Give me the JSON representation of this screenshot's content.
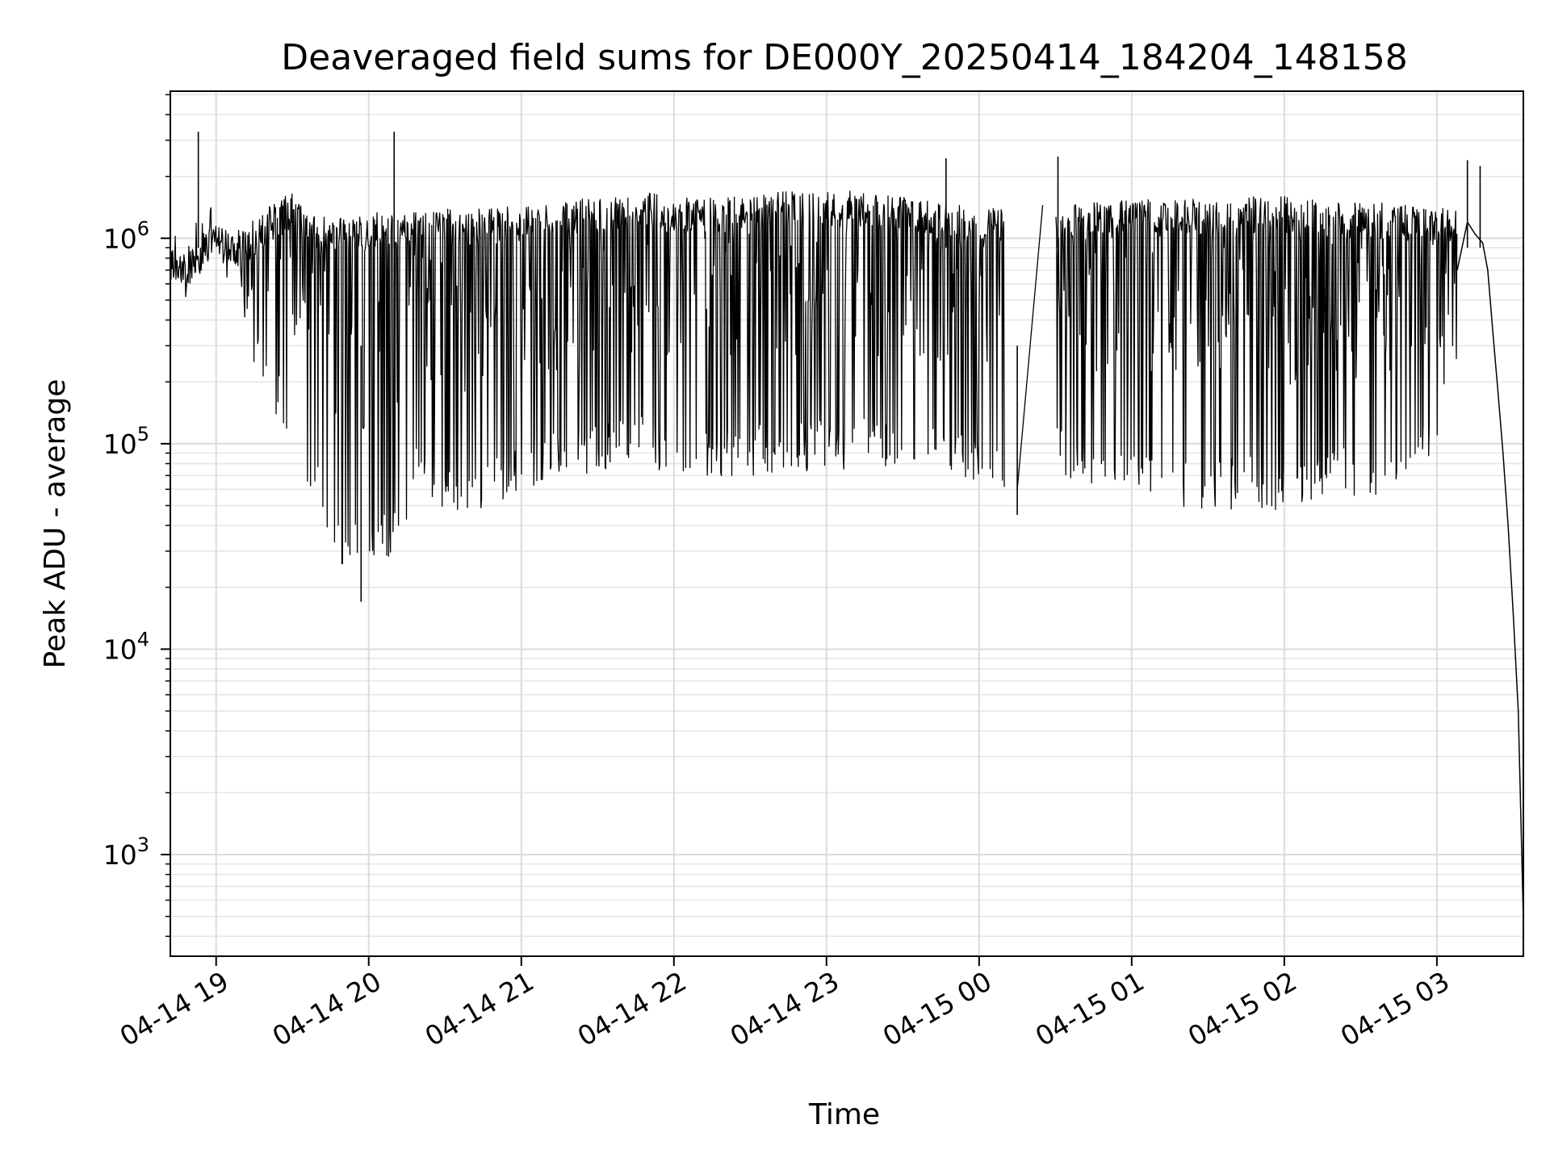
{
  "chart_data": {
    "type": "line",
    "title": "Deaveraged field sums for DE000Y_20250414_184204_148158",
    "xlabel": "Time",
    "ylabel": "Peak ADU - average",
    "yscale": "log",
    "ylim": [
      320,
      5200000
    ],
    "xlim": [
      "2025-04-14 18:42",
      "2025-04-15 03:34"
    ],
    "grid": true,
    "line_color": "#000000",
    "x_ticks": [
      "04-14 19",
      "04-14 20",
      "04-14 21",
      "04-14 22",
      "04-14 23",
      "04-15 00",
      "04-15 01",
      "04-15 02",
      "04-15 03"
    ],
    "x_tick_times": [
      "2025-04-14 19:00",
      "2025-04-14 20:00",
      "2025-04-14 21:00",
      "2025-04-14 22:00",
      "2025-04-14 23:00",
      "2025-04-15 00:00",
      "2025-04-15 01:00",
      "2025-04-15 02:00",
      "2025-04-15 03:00"
    ],
    "y_ticks": [
      {
        "value": 1000,
        "base": "10",
        "exp": "3"
      },
      {
        "value": 10000,
        "base": "10",
        "exp": "4"
      },
      {
        "value": 100000,
        "base": "10",
        "exp": "5"
      },
      {
        "value": 1000000,
        "base": "10",
        "exp": "6"
      }
    ],
    "envelope": {
      "times": [
        "2025-04-14 18:42",
        "2025-04-14 18:50",
        "2025-04-14 18:55",
        "2025-04-14 19:00",
        "2025-04-14 19:10",
        "2025-04-14 19:20",
        "2025-04-14 19:30",
        "2025-04-14 19:40",
        "2025-04-14 19:50",
        "2025-04-14 20:00",
        "2025-04-14 20:10",
        "2025-04-14 20:20",
        "2025-04-14 20:30",
        "2025-04-14 20:40",
        "2025-04-14 20:50",
        "2025-04-14 21:00",
        "2025-04-14 21:15",
        "2025-04-14 21:30",
        "2025-04-14 21:45",
        "2025-04-14 22:00",
        "2025-04-14 22:15",
        "2025-04-14 22:30",
        "2025-04-14 22:45",
        "2025-04-14 23:00",
        "2025-04-14 23:15",
        "2025-04-14 23:30",
        "2025-04-14 23:45",
        "2025-04-15 00:00",
        "2025-04-15 00:10",
        "2025-04-15 00:15",
        "2025-04-15 00:30",
        "2025-04-15 00:45",
        "2025-04-15 01:00",
        "2025-04-15 01:15",
        "2025-04-15 01:30",
        "2025-04-15 01:45",
        "2025-04-15 02:00",
        "2025-04-15 02:15",
        "2025-04-15 02:30",
        "2025-04-15 02:45",
        "2025-04-15 03:00",
        "2025-04-15 03:08"
      ],
      "upper": [
        900000,
        750000,
        1100000,
        1150000,
        1100000,
        1400000,
        1700000,
        1300000,
        1300000,
        1300000,
        1400000,
        1400000,
        1400000,
        1400000,
        1400000,
        1450000,
        1500000,
        1600000,
        1700000,
        1600000,
        1600000,
        1600000,
        1700000,
        1700000,
        1700000,
        1600000,
        1500000,
        1400000,
        1400000,
        null,
        1450000,
        1500000,
        1550000,
        1550000,
        1550000,
        1600000,
        1600000,
        1550000,
        1500000,
        1500000,
        1400000,
        1400000
      ],
      "lower": [
        600000,
        650000,
        800000,
        900000,
        400000,
        150000,
        110000,
        45000,
        25000,
        22000,
        30000,
        60000,
        45000,
        45000,
        50000,
        60000,
        65000,
        70000,
        80000,
        70000,
        65000,
        70000,
        70000,
        75000,
        75000,
        80000,
        75000,
        60000,
        55000,
        null,
        70000,
        60000,
        55000,
        50000,
        45000,
        50000,
        45000,
        55000,
        55000,
        55000,
        80000,
        250000
      ]
    },
    "spikes": [
      {
        "time": "2025-04-14 18:53",
        "value": 3300000
      },
      {
        "time": "2025-04-14 20:10",
        "value": 3300000
      },
      {
        "time": "2025-04-14 23:47",
        "value": 2450000
      },
      {
        "time": "2025-04-15 00:31",
        "value": 2500000
      },
      {
        "time": "2025-04-15 03:12",
        "value": 2400000
      },
      {
        "time": "2025-04-15 03:17",
        "value": 2250000
      },
      {
        "time": "2025-04-14 19:57",
        "value": 17000
      },
      {
        "time": "2025-04-15 00:15",
        "value": 45000
      }
    ],
    "tail": {
      "times": [
        "2025-04-15 03:08",
        "2025-04-15 03:12",
        "2025-04-15 03:15",
        "2025-04-15 03:18",
        "2025-04-15 03:20",
        "2025-04-15 03:22",
        "2025-04-15 03:24",
        "2025-04-15 03:26",
        "2025-04-15 03:28",
        "2025-04-15 03:30",
        "2025-04-15 03:32",
        "2025-04-15 03:34"
      ],
      "values": [
        700000,
        1200000,
        1050000,
        950000,
        700000,
        350000,
        180000,
        90000,
        40000,
        15000,
        5000,
        480
      ]
    },
    "gap_line": {
      "times": [
        "2025-04-15 00:15",
        "2025-04-15 00:25"
      ],
      "values": [
        60000,
        1450000
      ]
    }
  }
}
